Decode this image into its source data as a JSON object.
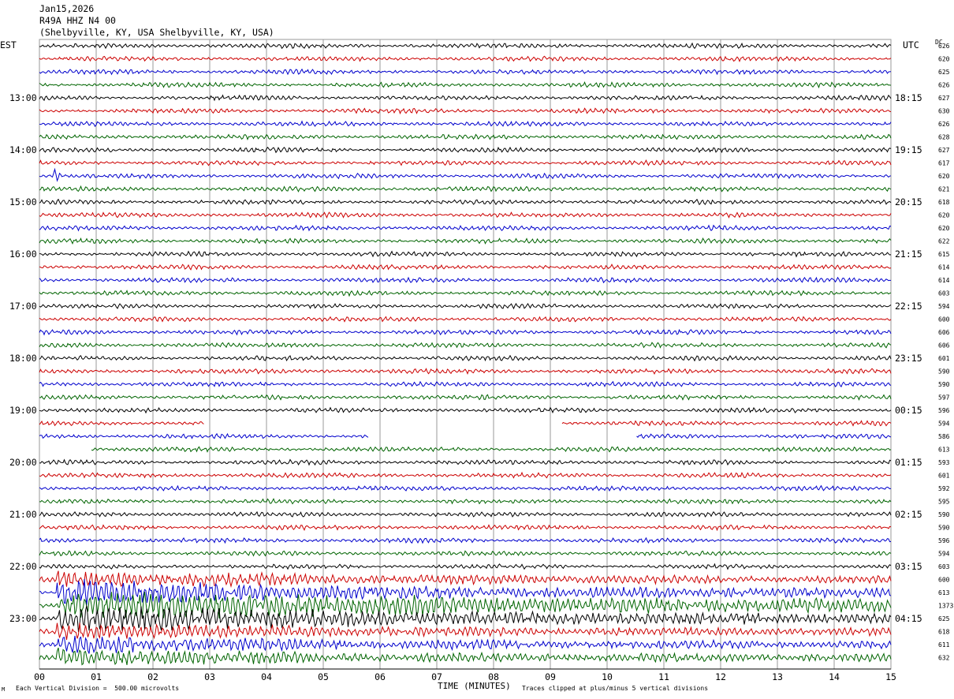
{
  "header": {
    "date": "Jan15,2026",
    "station": "R49A HHZ N4 00",
    "location": "(Shelbyville, KY, USA Shelbyville, KY, USA)"
  },
  "left_zone": "EST",
  "right_zone": "UTC",
  "dc_label": "DC",
  "footer": {
    "division": "Each Vertical Division =  500.00 microvolts",
    "clip": "Traces clipped at plus/minus 5 vertical divisions",
    "mark": "M"
  },
  "colors": {
    "black": "#000000",
    "red": "#cc0000",
    "blue": "#0000cc",
    "green": "#006400",
    "grid": "#999999"
  },
  "chart_data": {
    "type": "line",
    "title": "R49A HHZ N4 00",
    "xlabel": "TIME (MINUTES)",
    "x_ticks": [
      "00",
      "01",
      "02",
      "03",
      "04",
      "05",
      "06",
      "07",
      "08",
      "09",
      "10",
      "11",
      "12",
      "13",
      "14",
      "15"
    ],
    "xlim": [
      0,
      15
    ],
    "minutes_per_line": 15,
    "trace_colors": [
      "black",
      "red",
      "blue",
      "green"
    ],
    "left_hour_labels": [
      "13:00",
      "14:00",
      "15:00",
      "16:00",
      "17:00",
      "18:00",
      "19:00",
      "20:00",
      "21:00",
      "22:00",
      "23:00"
    ],
    "right_hour_labels": [
      "18:15",
      "19:15",
      "20:15",
      "21:15",
      "22:15",
      "23:15",
      "00:15",
      "01:15",
      "02:15",
      "03:15",
      "04:15"
    ],
    "dc_offsets": [
      "626",
      "620",
      "625",
      "626",
      "627",
      "630",
      "626",
      "628",
      "627",
      "617",
      "620",
      "621",
      "618",
      "620",
      "620",
      "622",
      "615",
      "614",
      "614",
      "603",
      "594",
      "600",
      "606",
      "606",
      "601",
      "590",
      "590",
      "597",
      "596",
      "594",
      "586",
      "613",
      "593",
      "601",
      "592",
      "595",
      "590",
      "590",
      "596",
      "594",
      "603",
      "600",
      "613",
      "1373",
      "625",
      "618",
      "611",
      "632"
    ],
    "events": [
      {
        "line": 10,
        "minute": 0.3,
        "note": "short spike"
      },
      {
        "line": 41,
        "minute": 0.5,
        "note": "large arrival, coda to 15"
      }
    ],
    "gaps": [
      {
        "line": 29,
        "from": 2.9,
        "to": 9.2
      },
      {
        "line": 30,
        "from": 5.8,
        "to": 10.5
      },
      {
        "line": 31,
        "from": 0,
        "to": 0.9
      }
    ]
  }
}
